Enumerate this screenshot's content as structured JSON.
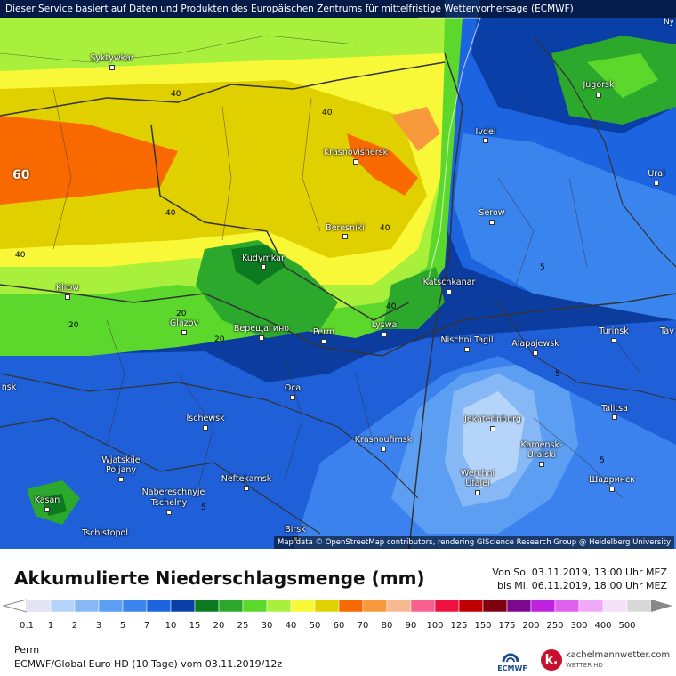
{
  "banner": "Dieser Service basiert auf Daten und Produkten des Europäischen Zentrums für mittelfristige Wettervorhersage (ECMWF)",
  "corner_label": "Ny",
  "attribution": "Map data © OpenStreetMap contributors, rendering GIScience Research Group @ Heidelberg University",
  "title": "Akkumulierte Niederschlagsmenge (mm)",
  "period": {
    "from": "Von So. 03.11.2019, 13:00 Uhr MEZ",
    "to": "bis Mi. 06.11.2019, 18:00 Uhr MEZ"
  },
  "location": "Perm",
  "model": "ECMWF/Global Euro HD (10 Tage) vom 03.11.2019/12z",
  "logos": {
    "ecmwf": "ECMWF",
    "kachelmann": "kachelmannwetter.com",
    "kachelmann_sub": "WETTER HD"
  },
  "big_label": "60",
  "cities": [
    {
      "name": "Syktywkar"
    },
    {
      "name": "Jugorsk"
    },
    {
      "name": "Ivdel"
    },
    {
      "name": "Urai"
    },
    {
      "name": "Krasnovishersk"
    },
    {
      "name": "Serow"
    },
    {
      "name": "Beresniki"
    },
    {
      "name": "Kudymkar"
    },
    {
      "name": "Katschkanar"
    },
    {
      "name": "Kirow"
    },
    {
      "name": "Glazov"
    },
    {
      "name": "Верещагино"
    },
    {
      "name": "Perm"
    },
    {
      "name": "Lyswa"
    },
    {
      "name": "Nischni Tagil"
    },
    {
      "name": "Alapajewsk"
    },
    {
      "name": "Turinsk"
    },
    {
      "name": "Tav"
    },
    {
      "name": "nsk"
    },
    {
      "name": "Oca"
    },
    {
      "name": "Ischewsk"
    },
    {
      "name": "Jekaterinburg"
    },
    {
      "name": "Talitsa"
    },
    {
      "name": "Krasnoufimsk"
    },
    {
      "name": "Wjatskije"
    },
    {
      "name": "Poljany"
    },
    {
      "name": "Kamensk-"
    },
    {
      "name": "Uralski"
    },
    {
      "name": "Neftekamsk"
    },
    {
      "name": "Werchni"
    },
    {
      "name": "Ufalei"
    },
    {
      "name": "Шадринск"
    },
    {
      "name": "Nabereschnyje"
    },
    {
      "name": "Tschelny"
    },
    {
      "name": "Kasan"
    },
    {
      "name": "Tschistopol"
    },
    {
      "name": "Birsk"
    }
  ],
  "contour_labels": [
    "40",
    "40",
    "40",
    "40",
    "40",
    "40",
    "20",
    "20",
    "20",
    "5",
    "5",
    "5",
    "5"
  ],
  "legend": {
    "labels": [
      "0.1",
      "1",
      "2",
      "3",
      "5",
      "7",
      "10",
      "15",
      "20",
      "25",
      "30",
      "40",
      "50",
      "60",
      "70",
      "80",
      "90",
      "100",
      "125",
      "150",
      "175",
      "200",
      "250",
      "300",
      "400",
      "500"
    ],
    "colors": [
      "#e4e4f4",
      "#b4d4fa",
      "#86b8f6",
      "#5c9ef2",
      "#3a84ee",
      "#1c64e0",
      "#0a3fa8",
      "#0c7a1e",
      "#2ca82c",
      "#5cd82c",
      "#a8f03c",
      "#f8f838",
      "#e0d000",
      "#f86a00",
      "#f89a3c",
      "#f8b890",
      "#f86090",
      "#f01040",
      "#c00000",
      "#800010",
      "#7c0890",
      "#c020e0",
      "#e060f0",
      "#f0a8f8",
      "#f4e0f8",
      "#d8d8d8"
    ]
  }
}
